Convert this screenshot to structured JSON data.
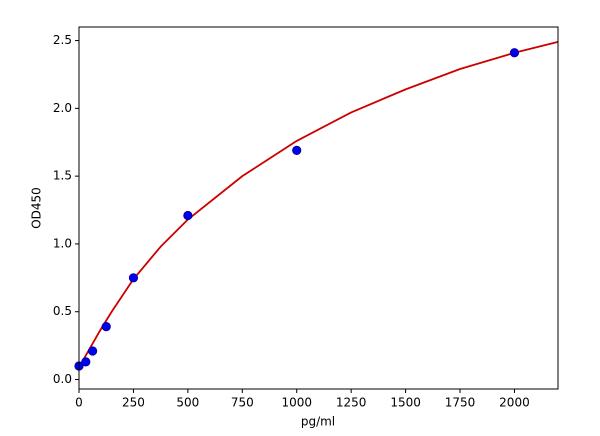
{
  "chart_data": {
    "type": "scatter",
    "x_label": "pg/ml",
    "y_label": "OD450",
    "xlim": [
      0,
      2200
    ],
    "ylim": [
      -0.07,
      2.6
    ],
    "xticks": [
      0,
      250,
      500,
      750,
      1000,
      1250,
      1500,
      1750,
      2000
    ],
    "yticks": [
      {
        "value": 0,
        "label": "0.0"
      },
      0.5,
      {
        "value": 1,
        "label": "1.0"
      },
      1.5,
      {
        "value": 2,
        "label": "2.0"
      },
      2.5
    ],
    "grid": false,
    "series": [
      {
        "type": "scatter",
        "color": "#0000ee",
        "x": [
          0,
          31.25,
          62.5,
          125,
          250,
          500,
          1000,
          2000
        ],
        "values": [
          0.1,
          0.13,
          0.21,
          0.39,
          0.75,
          1.21,
          1.69,
          2.41
        ]
      },
      {
        "type": "line",
        "color": "#cc0000",
        "x": [
          0,
          50,
          100,
          150,
          250,
          375,
          500,
          750,
          1000,
          1250,
          1500,
          1750,
          2000,
          2200
        ],
        "values": [
          0.09,
          0.23,
          0.37,
          0.5,
          0.74,
          0.98,
          1.18,
          1.5,
          1.76,
          1.97,
          2.14,
          2.29,
          2.41,
          2.49
        ]
      }
    ]
  }
}
